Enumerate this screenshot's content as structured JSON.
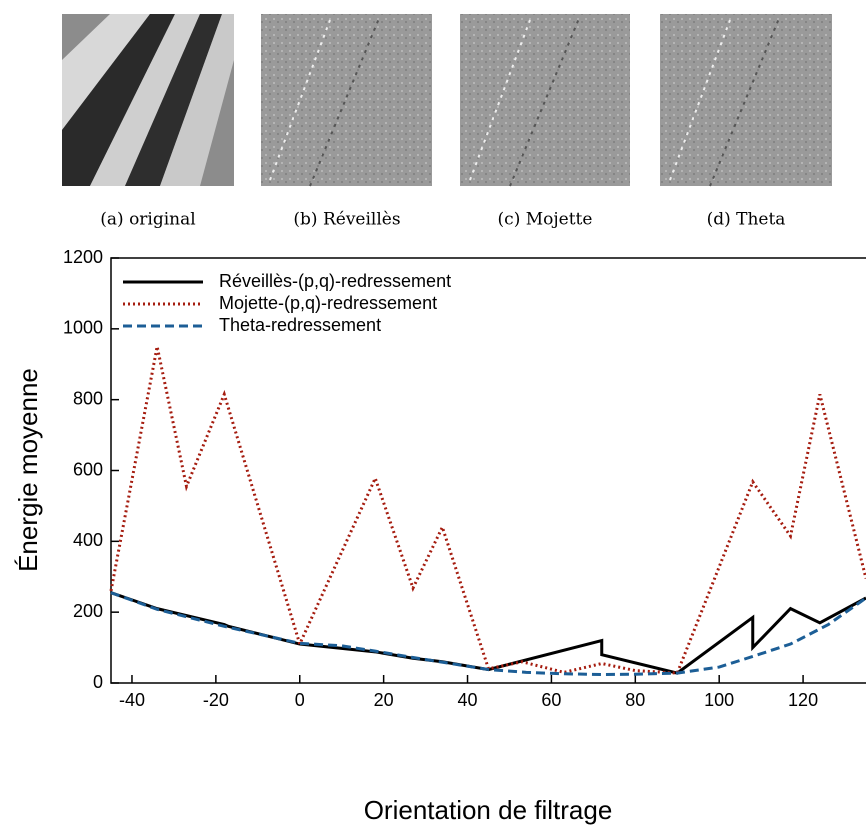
{
  "figure": {
    "captions": [
      "(a) original",
      "(b) Réveillès",
      "(c) Mojette",
      "(d) Theta"
    ]
  },
  "chart_data": {
    "type": "line",
    "xlabel": "Orientation de filtrage",
    "ylabel": "Énergie moyenne",
    "xlim": [
      -45,
      135
    ],
    "ylim": [
      0,
      1200
    ],
    "xticks": [
      -40,
      -20,
      0,
      20,
      40,
      60,
      80,
      100,
      120
    ],
    "yticks": [
      0,
      200,
      400,
      600,
      800,
      1000,
      1200
    ],
    "legend": "top-left",
    "series": [
      {
        "name": "Réveillès-(p,q)-redressement",
        "color": "#000000",
        "dash": "solid",
        "x": [
          -45,
          -34,
          -18,
          -17,
          0,
          18,
          27,
          34,
          45,
          72,
          72,
          90,
          108,
          108,
          117,
          124,
          135
        ],
        "values": [
          255,
          210,
          165,
          160,
          110,
          88,
          70,
          60,
          38,
          120,
          80,
          28,
          185,
          100,
          210,
          170,
          240
        ]
      },
      {
        "name": "Mojette-(p,q)-redressement",
        "color": "#a51c0f",
        "dash": "dotted",
        "x": [
          -45,
          -34,
          -27,
          -18,
          0,
          18,
          27,
          34,
          45,
          53,
          63,
          72,
          80,
          90,
          108,
          117,
          124,
          135
        ],
        "values": [
          260,
          950,
          555,
          815,
          110,
          578,
          268,
          440,
          40,
          60,
          30,
          55,
          35,
          28,
          568,
          415,
          815,
          295
        ]
      },
      {
        "name": "Theta-redressement",
        "color": "#1c5e96",
        "dash": "dashed",
        "x": [
          -45,
          -34,
          -18,
          0,
          10,
          18,
          27,
          36,
          45,
          54,
          63,
          72,
          81,
          90,
          100,
          108,
          117,
          126,
          135
        ],
        "values": [
          255,
          208,
          160,
          112,
          105,
          90,
          72,
          55,
          38,
          30,
          26,
          24,
          25,
          28,
          45,
          75,
          110,
          165,
          240
        ]
      }
    ]
  }
}
